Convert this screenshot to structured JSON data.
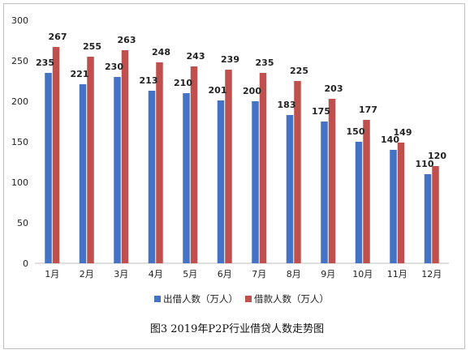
{
  "chart_data": {
    "type": "bar",
    "title": "",
    "caption": "图3   2019年P2P行业借贷人数走势图",
    "categories": [
      "1月",
      "2月",
      "3月",
      "4月",
      "5月",
      "6月",
      "7月",
      "8月",
      "9月",
      "10月",
      "11月",
      "12月"
    ],
    "series": [
      {
        "name": "出借人数（万人）",
        "color": "#4472c4",
        "values": [
          235,
          221,
          230,
          213,
          210,
          201,
          200,
          183,
          175,
          150,
          140,
          110
        ]
      },
      {
        "name": "借款人数（万人）",
        "color": "#c0504d",
        "values": [
          267,
          255,
          263,
          248,
          243,
          239,
          235,
          225,
          203,
          177,
          149,
          120
        ]
      }
    ],
    "ylim": [
      0,
      300
    ],
    "yticks": [
      0,
      50,
      100,
      150,
      200,
      250,
      300
    ],
    "grid": false,
    "legend": "bottom"
  }
}
